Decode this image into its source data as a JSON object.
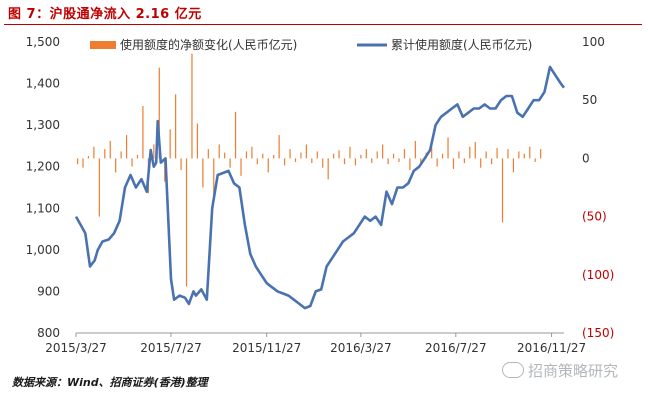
{
  "figure_title": "图 7：沪股通净流入 2.16 亿元",
  "source_note": "数据来源：Wind、招商证券(香港)整理",
  "watermark": "招商策略研究",
  "colors": {
    "title": "#c00000",
    "bar": "#ed7d31",
    "line": "#4a72b0",
    "right_axis_negative": "#c00000"
  },
  "chart_data": {
    "type": "bar+line",
    "title": "",
    "x_ticks": [
      "2015/3/27",
      "2015/7/27",
      "2015/11/27",
      "2016/3/27",
      "2016/7/27",
      "2016/11/27"
    ],
    "x_range": [
      "2015-03-27",
      "2016-12-13"
    ],
    "y_left": {
      "ticks": [
        "800",
        "900",
        "1,000",
        "1,100",
        "1,200",
        "1,300",
        "1,400",
        "1,500"
      ],
      "range": [
        800,
        1500
      ]
    },
    "y_right": {
      "ticks": [
        "100",
        "50",
        "0",
        "(50)",
        "(100)",
        "(150)"
      ],
      "range": [
        -150,
        100
      ]
    },
    "legend_position": "top",
    "series": [
      {
        "name": "使用额度的净额变化(人民币亿元)",
        "kind": "bar",
        "axis": "right",
        "sample_every": "week",
        "values": [
          -5,
          -8,
          2,
          10,
          -50,
          8,
          15,
          -12,
          6,
          20,
          -7,
          3,
          45,
          -30,
          12,
          78,
          -20,
          25,
          55,
          -10,
          -110,
          90,
          30,
          -25,
          8,
          -35,
          12,
          5,
          -8,
          40,
          -15,
          6,
          10,
          -5,
          4,
          -12,
          3,
          20,
          -6,
          8,
          -3,
          5,
          12,
          -4,
          6,
          -8,
          -18,
          4,
          7,
          -5,
          10,
          -6,
          3,
          8,
          -4,
          6,
          12,
          -5,
          4,
          -3,
          8,
          -10,
          15,
          -6,
          5,
          12,
          -7,
          4,
          18,
          -9,
          6,
          -4,
          10,
          14,
          -8,
          6,
          -5,
          9,
          -55,
          8,
          -12,
          6,
          4,
          10,
          -3,
          8
        ]
      },
      {
        "name": "累计使用额度(人民币亿元)",
        "kind": "line",
        "axis": "left",
        "x": [
          "2015-03-27",
          "2015-04-02",
          "2015-04-08",
          "2015-04-14",
          "2015-04-20",
          "2015-04-24",
          "2015-04-30",
          "2015-05-08",
          "2015-05-15",
          "2015-05-22",
          "2015-05-29",
          "2015-06-05",
          "2015-06-12",
          "2015-06-19",
          "2015-06-26",
          "2015-07-01",
          "2015-07-05",
          "2015-07-08",
          "2015-07-10",
          "2015-07-14",
          "2015-07-20",
          "2015-07-27",
          "2015-07-31",
          "2015-08-07",
          "2015-08-14",
          "2015-08-19",
          "2015-08-21",
          "2015-08-25",
          "2015-08-28",
          "2015-09-04",
          "2015-09-11",
          "2015-09-18",
          "2015-09-25",
          "2015-10-09",
          "2015-10-16",
          "2015-10-23",
          "2015-10-30",
          "2015-11-06",
          "2015-11-13",
          "2015-11-20",
          "2015-11-27",
          "2015-12-04",
          "2015-12-11",
          "2015-12-18",
          "2015-12-25",
          "2016-01-01",
          "2016-01-08",
          "2016-01-15",
          "2016-01-22",
          "2016-01-29",
          "2016-02-05",
          "2016-02-12",
          "2016-02-19",
          "2016-02-26",
          "2016-03-04",
          "2016-03-11",
          "2016-03-18",
          "2016-03-25",
          "2016-04-01",
          "2016-04-08",
          "2016-04-15",
          "2016-04-22",
          "2016-04-29",
          "2016-05-06",
          "2016-05-13",
          "2016-05-20",
          "2016-05-27",
          "2016-06-03",
          "2016-06-10",
          "2016-06-17",
          "2016-06-24",
          "2016-07-01",
          "2016-07-08",
          "2016-07-15",
          "2016-07-22",
          "2016-07-29",
          "2016-08-05",
          "2016-08-12",
          "2016-08-19",
          "2016-08-26",
          "2016-09-02",
          "2016-09-09",
          "2016-09-16",
          "2016-09-23",
          "2016-09-30",
          "2016-10-07",
          "2016-10-14",
          "2016-10-21",
          "2016-10-28",
          "2016-11-04",
          "2016-11-11",
          "2016-11-18",
          "2016-11-25",
          "2016-12-02",
          "2016-12-09",
          "2016-12-13"
        ],
        "values": [
          1080,
          1060,
          1040,
          960,
          975,
          1000,
          1020,
          1025,
          1040,
          1070,
          1150,
          1180,
          1150,
          1170,
          1140,
          1240,
          1200,
          1210,
          1310,
          1210,
          1220,
          930,
          880,
          890,
          885,
          870,
          880,
          900,
          890,
          905,
          880,
          1100,
          1180,
          1190,
          1160,
          1150,
          1060,
          990,
          960,
          940,
          920,
          910,
          900,
          895,
          890,
          880,
          870,
          860,
          865,
          900,
          905,
          960,
          980,
          1000,
          1020,
          1030,
          1040,
          1060,
          1080,
          1070,
          1080,
          1060,
          1140,
          1110,
          1150,
          1150,
          1160,
          1190,
          1200,
          1220,
          1240,
          1300,
          1320,
          1330,
          1340,
          1350,
          1320,
          1330,
          1340,
          1340,
          1350,
          1340,
          1340,
          1360,
          1370,
          1370,
          1330,
          1320,
          1340,
          1360,
          1360,
          1380,
          1440,
          1420,
          1400,
          1390
        ]
      }
    ]
  }
}
